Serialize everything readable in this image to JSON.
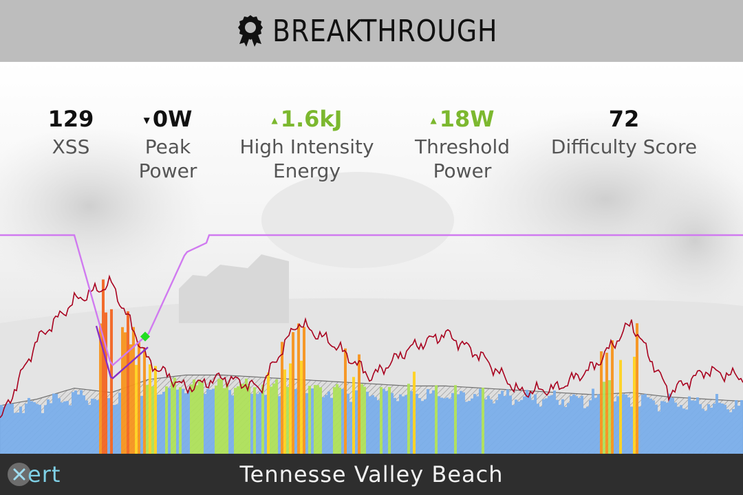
{
  "header": {
    "title": "BREAKTHROUGH",
    "icon": "award-ribbon-icon"
  },
  "metrics": [
    {
      "value": "129",
      "trend": "",
      "label_lines": [
        "XSS"
      ]
    },
    {
      "value": "0W",
      "trend": "down",
      "label_lines": [
        "Peak",
        "Power"
      ]
    },
    {
      "value": "1.6kJ",
      "trend": "up",
      "label_lines": [
        "High Intensity",
        "Energy"
      ]
    },
    {
      "value": "18W",
      "trend": "up",
      "label_lines": [
        "Threshold",
        "Power"
      ]
    },
    {
      "value": "72",
      "trend": "",
      "label_lines": [
        "Difficulty Score"
      ]
    }
  ],
  "footer": {
    "location": "Tennesse Valley Beach",
    "logo_text": "ert"
  },
  "colors": {
    "header_bg": "#bdbdbd",
    "footer_bg": "#2e2e2e",
    "up": "#7cb82f",
    "mpa_line": "#d07af0",
    "mpa_breakthrough": "#8a2fc4",
    "power_line": "#a8001e",
    "elevation": "#707070",
    "breakthrough_marker": "#22dd22"
  },
  "chart_data": {
    "type": "area",
    "title": "",
    "xlabel": "",
    "ylabel": "",
    "grid": false,
    "x": [
      0,
      5,
      10,
      15,
      20,
      25,
      30,
      35,
      40,
      45,
      50,
      55,
      60,
      65,
      70,
      75,
      80,
      85,
      90,
      95,
      100
    ],
    "series": [
      {
        "values": [
          100,
          100,
          100,
          40,
          55,
          92,
          100,
          100,
          99,
          100,
          100,
          100,
          100,
          98,
          100,
          100,
          100,
          100,
          100,
          100,
          100
        ]
      },
      {
        "values": [
          15,
          52,
          70,
          78,
          42,
          30,
          35,
          30,
          60,
          50,
          35,
          48,
          55,
          44,
          28,
          30,
          40,
          60,
          28,
          38,
          35
        ]
      },
      {
        "values": [
          22,
          25,
          30,
          28,
          34,
          36,
          36,
          35,
          34,
          33,
          32,
          31,
          31,
          30,
          29,
          28,
          27,
          28,
          26,
          25,
          24
        ]
      }
    ],
    "ylim": [
      0,
      100
    ]
  }
}
